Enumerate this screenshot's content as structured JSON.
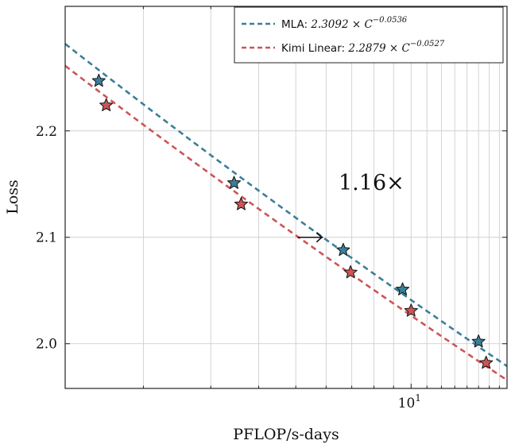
{
  "chart_data": {
    "type": "line",
    "title": "",
    "xlabel": "PFLOP/s-days",
    "ylabel": "Loss",
    "xscale": "log",
    "xlim": [
      1.25,
      17.8
    ],
    "ylim": [
      1.958,
      2.317
    ],
    "yticks": [
      {
        "value": 2.0,
        "label": "2.0"
      },
      {
        "value": 2.1,
        "label": "2.1"
      },
      {
        "value": 2.2,
        "label": "2.2"
      }
    ],
    "xticks": [
      {
        "value": 10,
        "base": "10",
        "exp": "1"
      }
    ],
    "grid": true,
    "legend_position": "top-right",
    "series": [
      {
        "name": "MLA",
        "legend_prefix": "MLA: ",
        "legend_formula": "2.3092 × C",
        "legend_exp": "−0.0536",
        "coef": 2.3092,
        "exponent": -0.0536,
        "color": "#3b7f98",
        "points": [
          {
            "x": 1.53,
            "y": 2.247
          },
          {
            "x": 3.45,
            "y": 2.151
          },
          {
            "x": 6.65,
            "y": 2.088
          },
          {
            "x": 9.5,
            "y": 2.051
          },
          {
            "x": 15.0,
            "y": 2.002
          }
        ]
      },
      {
        "name": "Kimi Linear",
        "legend_prefix": "Kimi Linear: ",
        "legend_formula": "2.2879 × C",
        "legend_exp": "−0.0527",
        "coef": 2.2879,
        "exponent": -0.0527,
        "color": "#cc5557",
        "points": [
          {
            "x": 1.6,
            "y": 2.224
          },
          {
            "x": 3.6,
            "y": 2.131
          },
          {
            "x": 6.95,
            "y": 2.067
          },
          {
            "x": 10.0,
            "y": 2.031
          },
          {
            "x": 15.7,
            "y": 1.982
          }
        ]
      }
    ],
    "annotation": {
      "text": "1.16×",
      "arrow_from_x": 5.05,
      "arrow_to_x": 5.86,
      "arrow_y": 2.1
    }
  }
}
